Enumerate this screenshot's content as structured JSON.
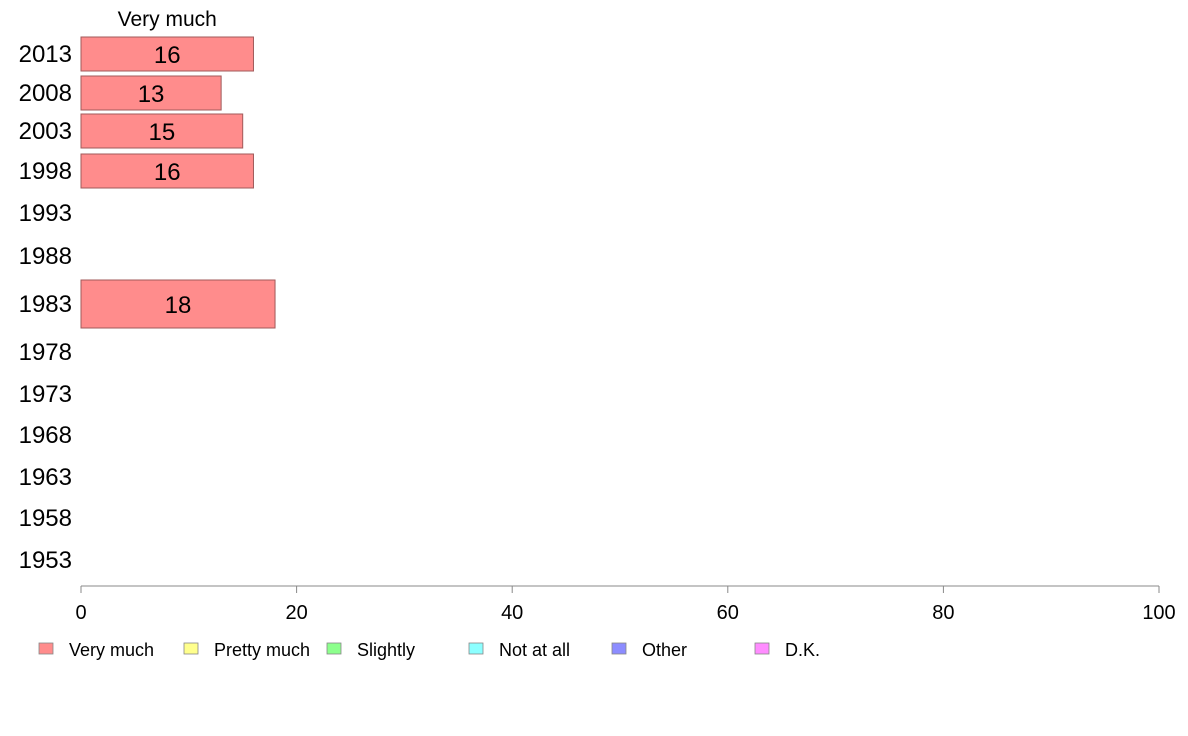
{
  "chart_data": {
    "type": "bar",
    "orientation": "horizontal",
    "stacked": true,
    "categories": [
      "2013",
      "2008",
      "2003",
      "1998",
      "1993",
      "1988",
      "1983",
      "1978",
      "1973",
      "1968",
      "1963",
      "1958",
      "1953"
    ],
    "series": [
      {
        "name": "Very much",
        "color": "#ff8c8c",
        "values": [
          16,
          13,
          15,
          16,
          null,
          null,
          18,
          null,
          null,
          null,
          null,
          null,
          null
        ]
      },
      {
        "name": "Pretty much",
        "color": "#ffff8c",
        "values": [
          null,
          null,
          null,
          null,
          null,
          null,
          null,
          null,
          null,
          null,
          null,
          null,
          null
        ]
      },
      {
        "name": "Slightly",
        "color": "#8cff8c",
        "values": [
          null,
          null,
          null,
          null,
          null,
          null,
          null,
          null,
          null,
          null,
          null,
          null,
          null
        ]
      },
      {
        "name": "Not at all",
        "color": "#8cffff",
        "values": [
          null,
          null,
          null,
          null,
          null,
          null,
          null,
          null,
          null,
          null,
          null,
          null,
          null
        ]
      },
      {
        "name": "Other",
        "color": "#8c8cff",
        "values": [
          null,
          null,
          null,
          null,
          null,
          null,
          null,
          null,
          null,
          null,
          null,
          null,
          null
        ]
      },
      {
        "name": "D.K.",
        "color": "#ff8cff",
        "values": [
          null,
          null,
          null,
          null,
          null,
          null,
          null,
          null,
          null,
          null,
          null,
          null,
          null
        ]
      }
    ],
    "header_label": "Very much",
    "xlim": [
      0,
      100
    ],
    "xticks": [
      "0",
      "20",
      "40",
      "60",
      "80",
      "100"
    ],
    "grid": false,
    "legend_position": "bottom"
  }
}
